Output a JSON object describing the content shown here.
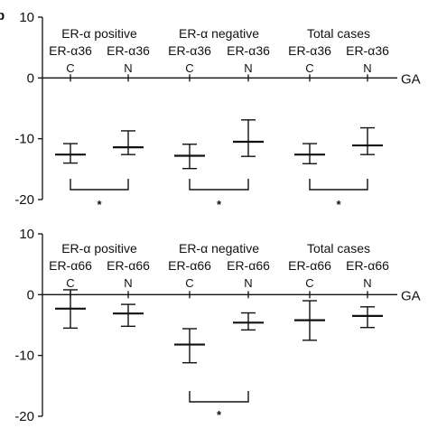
{
  "panel_letter": "b",
  "chart_data": [
    {
      "type": "errorbar",
      "ylim": [
        -20,
        10
      ],
      "yticks": [
        10,
        0,
        -10,
        -20
      ],
      "axis_label": "GA",
      "groups": [
        {
          "label": "ER-α positive",
          "sub": [
            "ER-α36",
            "ER-α36"
          ]
        },
        {
          "label": "ER-α negative",
          "sub": [
            "ER-α36",
            "ER-α36"
          ]
        },
        {
          "label": "Total cases",
          "sub": [
            "ER-α36",
            "ER-α36"
          ]
        }
      ],
      "categories": [
        "C",
        "N",
        "C",
        "N",
        "C",
        "N"
      ],
      "mean": [
        -12.6,
        -11.4,
        -12.8,
        -10.5,
        -12.6,
        -11.1
      ],
      "upper": [
        -10.8,
        -8.7,
        -10.9,
        -6.9,
        -10.8,
        -8.2
      ],
      "lower": [
        -14.0,
        -12.6,
        -14.9,
        -12.9,
        -14.1,
        -12.6
      ],
      "significance": [
        {
          "from": 0,
          "to": 1,
          "label": "*"
        },
        {
          "from": 2,
          "to": 3,
          "label": "*"
        },
        {
          "from": 4,
          "to": 5,
          "label": "*"
        }
      ]
    },
    {
      "type": "errorbar",
      "ylim": [
        -20,
        10
      ],
      "yticks": [
        10,
        0,
        -10,
        -20
      ],
      "axis_label": "GA",
      "groups": [
        {
          "label": "ER-α positive",
          "sub": [
            "ER-α66",
            "ER-α66"
          ]
        },
        {
          "label": "ER-α negative",
          "sub": [
            "ER-α66",
            "ER-α66"
          ]
        },
        {
          "label": "Total cases",
          "sub": [
            "ER-α66",
            "ER-α66"
          ]
        }
      ],
      "categories": [
        "C",
        "N",
        "C",
        "N",
        "C",
        "N"
      ],
      "mean": [
        -2.3,
        -3.1,
        -8.2,
        -4.6,
        -4.2,
        -3.5
      ],
      "upper": [
        0.8,
        -1.6,
        -5.6,
        -3.0,
        -1.0,
        -2.0
      ],
      "lower": [
        -5.5,
        -5.2,
        -11.2,
        -5.8,
        -7.5,
        -5.4
      ],
      "significance": [
        {
          "from": 2,
          "to": 3,
          "label": "*"
        }
      ]
    }
  ]
}
